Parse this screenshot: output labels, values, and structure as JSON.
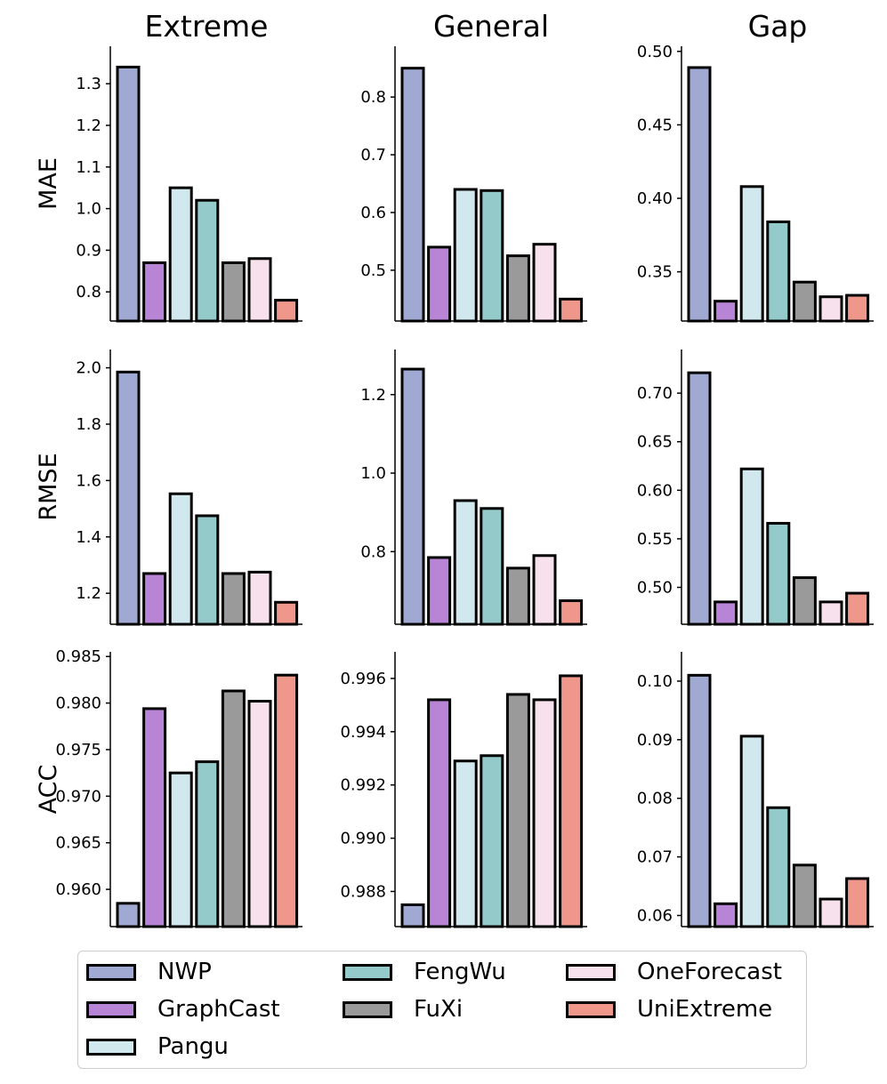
{
  "colors": {
    "NWP": "#a0a9d2",
    "GraphCast": "#b884d6",
    "Pangu": "#d1e8ef",
    "FengWu": "#94cbca",
    "FuXi": "#9a9a9a",
    "OneForecast": "#f7e1ec",
    "UniExtreme": "#ef978a"
  },
  "legend": {
    "items": [
      "NWP",
      "GraphCast",
      "Pangu",
      "FengWu",
      "FuXi",
      "OneForecast",
      "UniExtreme"
    ],
    "placement": "bottom"
  },
  "chart_data": [
    {
      "type": "bar",
      "row_label": "MAE",
      "col_title": "Extreme",
      "categories": [
        "NWP",
        "GraphCast",
        "Pangu",
        "FengWu",
        "FuXi",
        "OneForecast",
        "UniExtreme"
      ],
      "values": [
        1.34,
        0.87,
        1.05,
        1.02,
        0.87,
        0.88,
        0.78
      ],
      "ylim": [
        0.73,
        1.39
      ],
      "yticks": [
        0.8,
        0.9,
        1.0,
        1.1,
        1.2,
        1.3
      ],
      "tick_labels": [
        "0.8",
        "0.9",
        "1.0",
        "1.1",
        "1.2",
        "1.3"
      ]
    },
    {
      "type": "bar",
      "row_label": "MAE",
      "col_title": "General",
      "categories": [
        "NWP",
        "GraphCast",
        "Pangu",
        "FengWu",
        "FuXi",
        "OneForecast",
        "UniExtreme"
      ],
      "values": [
        0.85,
        0.54,
        0.64,
        0.638,
        0.525,
        0.545,
        0.45
      ],
      "ylim": [
        0.412,
        0.888
      ],
      "yticks": [
        0.5,
        0.6,
        0.7,
        0.8
      ],
      "tick_labels": [
        "0.5",
        "0.6",
        "0.7",
        "0.8"
      ]
    },
    {
      "type": "bar",
      "row_label": "MAE",
      "col_title": "Gap",
      "categories": [
        "NWP",
        "GraphCast",
        "Pangu",
        "FengWu",
        "FuXi",
        "OneForecast",
        "UniExtreme"
      ],
      "values": [
        0.489,
        0.33,
        0.408,
        0.384,
        0.343,
        0.333,
        0.334
      ],
      "ylim": [
        0.3165,
        0.5035
      ],
      "yticks": [
        0.35,
        0.4,
        0.45,
        0.5
      ],
      "tick_labels": [
        "0.35",
        "0.40",
        "0.45",
        "0.50"
      ]
    },
    {
      "type": "bar",
      "row_label": "RMSE",
      "col_title": "Extreme",
      "categories": [
        "NWP",
        "GraphCast",
        "Pangu",
        "FengWu",
        "FuXi",
        "OneForecast",
        "UniExtreme"
      ],
      "values": [
        1.985,
        1.27,
        1.553,
        1.475,
        1.27,
        1.275,
        1.168
      ],
      "ylim": [
        1.09,
        2.065
      ],
      "yticks": [
        1.2,
        1.4,
        1.6,
        1.8,
        2.0
      ],
      "tick_labels": [
        "1.2",
        "1.4",
        "1.6",
        "1.8",
        "2.0"
      ]
    },
    {
      "type": "bar",
      "row_label": "RMSE",
      "col_title": "General",
      "categories": [
        "NWP",
        "GraphCast",
        "Pangu",
        "FengWu",
        "FuXi",
        "OneForecast",
        "UniExtreme"
      ],
      "values": [
        1.265,
        0.785,
        0.93,
        0.91,
        0.758,
        0.79,
        0.675
      ],
      "ylim": [
        0.615,
        1.315
      ],
      "yticks": [
        0.8,
        1.0,
        1.2
      ],
      "tick_labels": [
        "0.8",
        "1.0",
        "1.2"
      ]
    },
    {
      "type": "bar",
      "row_label": "RMSE",
      "col_title": "Gap",
      "categories": [
        "NWP",
        "GraphCast",
        "Pangu",
        "FengWu",
        "FuXi",
        "OneForecast",
        "UniExtreme"
      ],
      "values": [
        0.721,
        0.485,
        0.622,
        0.566,
        0.51,
        0.485,
        0.494
      ],
      "ylim": [
        0.462,
        0.745
      ],
      "yticks": [
        0.5,
        0.55,
        0.6,
        0.65,
        0.7
      ],
      "tick_labels": [
        "0.50",
        "0.55",
        "0.60",
        "0.65",
        "0.70"
      ]
    },
    {
      "type": "bar",
      "row_label": "ACC",
      "col_title": "Extreme",
      "categories": [
        "NWP",
        "GraphCast",
        "Pangu",
        "FengWu",
        "FuXi",
        "OneForecast",
        "UniExtreme"
      ],
      "values": [
        0.9585,
        0.9794,
        0.9725,
        0.9737,
        0.9813,
        0.9802,
        0.983
      ],
      "ylim": [
        0.956,
        0.9855
      ],
      "yticks": [
        0.96,
        0.965,
        0.97,
        0.975,
        0.98,
        0.985
      ],
      "tick_labels": [
        "0.960",
        "0.965",
        "0.970",
        "0.975",
        "0.980",
        "0.985"
      ]
    },
    {
      "type": "bar",
      "row_label": "ACC",
      "col_title": "General",
      "categories": [
        "NWP",
        "GraphCast",
        "Pangu",
        "FengWu",
        "FuXi",
        "OneForecast",
        "UniExtreme"
      ],
      "values": [
        0.9875,
        0.9952,
        0.9929,
        0.9931,
        0.9954,
        0.9952,
        0.9961
      ],
      "ylim": [
        0.98668,
        0.997
      ],
      "yticks": [
        0.988,
        0.99,
        0.992,
        0.994,
        0.996
      ],
      "tick_labels": [
        "0.988",
        "0.990",
        "0.992",
        "0.994",
        "0.996"
      ]
    },
    {
      "type": "bar",
      "row_label": "ACC",
      "col_title": "Gap",
      "categories": [
        "NWP",
        "GraphCast",
        "Pangu",
        "FengWu",
        "FuXi",
        "OneForecast",
        "UniExtreme"
      ],
      "values": [
        0.101,
        0.062,
        0.0906,
        0.0784,
        0.0686,
        0.0628,
        0.0663
      ],
      "ylim": [
        0.0581,
        0.105
      ],
      "yticks": [
        0.06,
        0.07,
        0.08,
        0.09,
        0.1
      ],
      "tick_labels": [
        "0.06",
        "0.07",
        "0.08",
        "0.09",
        "0.10"
      ]
    }
  ]
}
